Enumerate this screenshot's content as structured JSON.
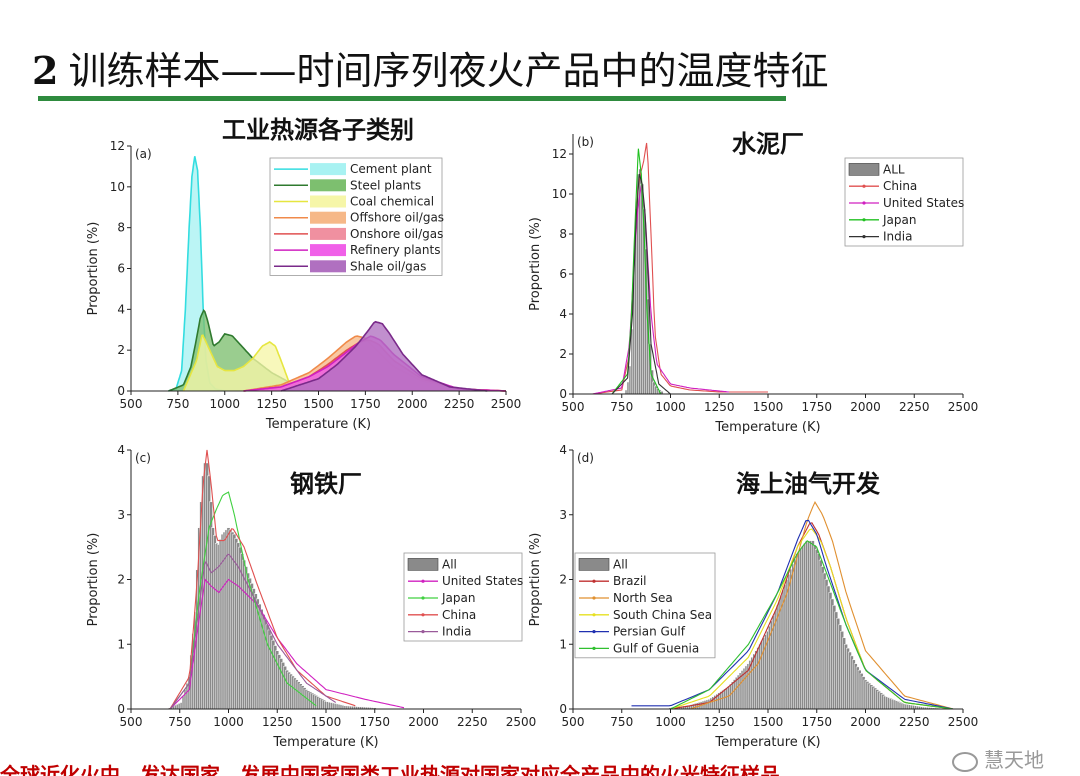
{
  "slide": {
    "number": "2",
    "title": "训练样本——时间序列夜火产品中的温度特征",
    "bottom_note": "全球近化火中，发达国家，发展中国家国类工业热源对国家对应全产品中的火光特征样品",
    "watermark": "慧天地"
  },
  "chart_data": [
    {
      "id": "a",
      "type": "area",
      "panel_label": "(a)",
      "title": "工业热源各子类别",
      "xlabel": "Temperature (K)",
      "ylabel": "Proportion (%)",
      "xlim": [
        500,
        2500
      ],
      "ylim": [
        0,
        12
      ],
      "xticks": [
        500,
        750,
        1000,
        1250,
        1500,
        1750,
        2000,
        2250,
        2500
      ],
      "yticks": [
        0,
        2,
        4,
        6,
        8,
        10,
        12
      ],
      "legend_position": "top-right",
      "series": [
        {
          "name": "Cement plant",
          "color": "#33dde0",
          "fill": "#a8f2f2",
          "x": [
            700,
            740,
            770,
            790,
            810,
            825,
            840,
            855,
            870,
            885,
            900,
            920,
            950,
            1000
          ],
          "y": [
            0,
            0.1,
            1.0,
            4.0,
            8.0,
            10.5,
            11.5,
            10.8,
            8.0,
            4.0,
            1.5,
            0.4,
            0.1,
            0
          ]
        },
        {
          "name": "Steel plants",
          "color": "#2f7a2f",
          "fill": "#7dbf6f",
          "x": [
            700,
            780,
            820,
            850,
            870,
            890,
            910,
            940,
            970,
            1000,
            1040,
            1080,
            1150,
            1250,
            1350,
            1450
          ],
          "y": [
            0,
            0.3,
            1.2,
            2.6,
            3.6,
            4.0,
            3.4,
            2.2,
            2.4,
            2.8,
            2.7,
            2.3,
            1.6,
            0.9,
            0.4,
            0.1
          ]
        },
        {
          "name": "Coal chemical",
          "color": "#e6e640",
          "fill": "#f6f6a8",
          "x": [
            780,
            850,
            880,
            920,
            960,
            1000,
            1050,
            1100,
            1150,
            1200,
            1240,
            1270,
            1300,
            1340,
            1400
          ],
          "y": [
            0,
            1.5,
            2.8,
            2.0,
            1.2,
            1.0,
            1.0,
            1.2,
            1.6,
            2.2,
            2.4,
            2.2,
            1.5,
            0.5,
            0.1
          ]
        },
        {
          "name": "Offshore oil/gas",
          "color": "#f08a4a",
          "fill": "#f6b888",
          "x": [
            1100,
            1300,
            1450,
            1550,
            1650,
            1700,
            1750,
            1800,
            1900,
            2050,
            2250,
            2500
          ],
          "y": [
            0,
            0.3,
            0.9,
            1.6,
            2.4,
            2.7,
            2.6,
            2.1,
            1.2,
            0.5,
            0.1,
            0
          ]
        },
        {
          "name": "Onshore oil/gas",
          "color": "#e05050",
          "fill": "#f090a0",
          "x": [
            1100,
            1300,
            1450,
            1550,
            1650,
            1720,
            1770,
            1820,
            1900,
            2050,
            2250,
            2500
          ],
          "y": [
            0,
            0.2,
            0.7,
            1.3,
            2.0,
            2.4,
            2.5,
            2.3,
            1.5,
            0.6,
            0.1,
            0
          ]
        },
        {
          "name": "Refinery plants",
          "color": "#d020c0",
          "fill": "#f060e8",
          "x": [
            1100,
            1300,
            1450,
            1550,
            1650,
            1720,
            1780,
            1830,
            1900,
            2050,
            2250,
            2500
          ],
          "y": [
            0,
            0.2,
            0.7,
            1.2,
            1.9,
            2.4,
            2.7,
            2.5,
            1.8,
            0.7,
            0.1,
            0
          ]
        },
        {
          "name": "Shale oil/gas",
          "color": "#7a2a8a",
          "fill": "#b070c0",
          "x": [
            1300,
            1500,
            1600,
            1700,
            1760,
            1800,
            1840,
            1880,
            1950,
            2050,
            2200,
            2400
          ],
          "y": [
            0,
            0.6,
            1.3,
            2.2,
            2.9,
            3.4,
            3.3,
            2.8,
            1.8,
            0.8,
            0.2,
            0
          ]
        }
      ]
    },
    {
      "id": "b",
      "type": "bar",
      "panel_label": "(b)",
      "title": "水泥厂",
      "xlabel": "Temperature (K)",
      "ylabel": "Proportion (%)",
      "xlim": [
        500,
        2500
      ],
      "ylim": [
        0,
        13
      ],
      "xticks": [
        500,
        750,
        1000,
        1250,
        1500,
        1750,
        2000,
        2250,
        2500
      ],
      "yticks": [
        0,
        2,
        4,
        6,
        8,
        10,
        12
      ],
      "legend_position": "top-right",
      "histogram": {
        "name": "ALL",
        "x": [
          775,
          790,
          800,
          810,
          820,
          830,
          840,
          850,
          860,
          870,
          880,
          890,
          900,
          915,
          930,
          960
        ],
        "y": [
          0.2,
          0.8,
          2.0,
          4.5,
          8.0,
          10.5,
          11.5,
          11.0,
          10.0,
          8.5,
          6.0,
          3.5,
          1.5,
          0.6,
          0.3,
          0.1
        ]
      },
      "series": [
        {
          "name": "China",
          "color": "#e05050",
          "x": [
            600,
            750,
            790,
            810,
            830,
            845,
            860,
            880,
            900,
            920,
            950,
            1000,
            1100,
            1250,
            1500
          ],
          "y": [
            0,
            0.2,
            2.0,
            6.0,
            10.0,
            11.0,
            11.5,
            12.7,
            8.0,
            3.0,
            1.0,
            0.4,
            0.2,
            0.1,
            0.1
          ]
        },
        {
          "name": "United States",
          "color": "#d020c0",
          "x": [
            600,
            750,
            790,
            810,
            830,
            850,
            870,
            900,
            930,
            1000,
            1100,
            1300
          ],
          "y": [
            0,
            0.3,
            2.5,
            6.0,
            9.0,
            10.5,
            9.0,
            4.0,
            1.5,
            0.5,
            0.3,
            0.1
          ]
        },
        {
          "name": "Japan",
          "color": "#20c020",
          "x": [
            700,
            780,
            800,
            820,
            835,
            850,
            865,
            880,
            900,
            950
          ],
          "y": [
            0,
            1.0,
            4.0,
            9.0,
            12.3,
            11.0,
            8.0,
            4.0,
            1.0,
            0
          ]
        },
        {
          "name": "India",
          "color": "#333333",
          "x": [
            700,
            780,
            805,
            825,
            840,
            855,
            870,
            885,
            900,
            940,
            1000
          ],
          "y": [
            0,
            0.8,
            4.0,
            9.0,
            11.0,
            10.5,
            9.0,
            6.0,
            2.5,
            0.5,
            0
          ]
        }
      ]
    },
    {
      "id": "c",
      "type": "bar",
      "panel_label": "(c)",
      "title": "钢铁厂",
      "xlabel": "Temperature (K)",
      "ylabel": "Proportion (%)",
      "xlim": [
        500,
        2500
      ],
      "ylim": [
        0,
        4
      ],
      "xticks": [
        500,
        750,
        1000,
        1250,
        1500,
        1750,
        2000,
        2250,
        2500
      ],
      "yticks": [
        0,
        1,
        2,
        3,
        4
      ],
      "legend_position": "center-right",
      "histogram": {
        "name": "All",
        "x": [
          700,
          760,
          800,
          830,
          850,
          870,
          885,
          900,
          920,
          945,
          970,
          1000,
          1030,
          1060,
          1100,
          1150,
          1200,
          1250,
          1300,
          1400,
          1500,
          1600,
          1750
        ],
        "y": [
          0.02,
          0.1,
          0.5,
          1.5,
          2.8,
          3.6,
          3.9,
          3.6,
          2.8,
          2.5,
          2.7,
          2.8,
          2.7,
          2.5,
          2.1,
          1.7,
          1.3,
          0.9,
          0.6,
          0.3,
          0.12,
          0.05,
          0.02
        ]
      },
      "series": [
        {
          "name": "United States",
          "color": "#d020c0",
          "x": [
            700,
            800,
            850,
            880,
            910,
            950,
            1000,
            1050,
            1150,
            1250,
            1350,
            1500,
            1700,
            1900
          ],
          "y": [
            0,
            0.3,
            1.4,
            2.0,
            1.9,
            1.8,
            2.0,
            1.9,
            1.6,
            1.1,
            0.7,
            0.3,
            0.15,
            0.02
          ]
        },
        {
          "name": "Japan",
          "color": "#40d040",
          "x": [
            700,
            800,
            850,
            900,
            940,
            970,
            1000,
            1030,
            1100,
            1200,
            1300,
            1450
          ],
          "y": [
            0,
            0.4,
            1.8,
            2.8,
            3.1,
            3.3,
            3.35,
            3.0,
            2.0,
            1.0,
            0.4,
            0.05
          ]
        },
        {
          "name": "China",
          "color": "#e05050",
          "x": [
            700,
            800,
            840,
            870,
            890,
            910,
            940,
            980,
            1020,
            1080,
            1150,
            1250,
            1350,
            1500,
            1650
          ],
          "y": [
            0,
            0.5,
            2.0,
            3.5,
            4.0,
            3.5,
            2.6,
            2.6,
            2.8,
            2.5,
            1.9,
            1.1,
            0.6,
            0.2,
            0.05
          ]
        },
        {
          "name": "India",
          "color": "#9a5a9a",
          "x": [
            700,
            800,
            850,
            880,
            910,
            950,
            1000,
            1050,
            1150,
            1250,
            1400,
            1550
          ],
          "y": [
            0,
            0.4,
            1.6,
            2.3,
            2.1,
            2.2,
            2.4,
            2.2,
            1.6,
            1.0,
            0.4,
            0.1
          ]
        }
      ]
    },
    {
      "id": "d",
      "type": "bar",
      "panel_label": "(d)",
      "title": "海上油气开发",
      "xlabel": "Temperature (K)",
      "ylabel": "Proportion (%)",
      "xlim": [
        500,
        2500
      ],
      "ylim": [
        0,
        4
      ],
      "xticks": [
        500,
        750,
        1000,
        1250,
        1500,
        1750,
        2000,
        2250,
        2500
      ],
      "yticks": [
        0,
        1,
        2,
        3,
        4
      ],
      "legend_position": "center-left",
      "histogram": {
        "name": "All",
        "x": [
          1000,
          1100,
          1200,
          1300,
          1400,
          1500,
          1550,
          1600,
          1650,
          1700,
          1730,
          1760,
          1800,
          1850,
          1900,
          1950,
          2000,
          2100,
          2200,
          2300,
          2400
        ],
        "y": [
          0.02,
          0.06,
          0.15,
          0.35,
          0.7,
          1.2,
          1.6,
          2.0,
          2.4,
          2.6,
          2.6,
          2.4,
          2.0,
          1.5,
          1.0,
          0.7,
          0.45,
          0.2,
          0.08,
          0.03,
          0.01
        ]
      },
      "series": [
        {
          "name": "Brazil",
          "color": "#c03030",
          "x": [
            1000,
            1200,
            1400,
            1550,
            1650,
            1720,
            1760,
            1820,
            1900,
            2000,
            2200,
            2450
          ],
          "y": [
            0,
            0.1,
            0.6,
            1.6,
            2.5,
            2.9,
            2.7,
            2.2,
            1.4,
            0.6,
            0.1,
            0
          ]
        },
        {
          "name": "North Sea",
          "color": "#e09030",
          "x": [
            1100,
            1300,
            1450,
            1600,
            1700,
            1740,
            1780,
            1830,
            1900,
            2000,
            2200,
            2450
          ],
          "y": [
            0,
            0.2,
            0.7,
            1.8,
            2.9,
            3.2,
            3.0,
            2.6,
            1.8,
            0.9,
            0.2,
            0
          ]
        },
        {
          "name": "South China Sea",
          "color": "#e6e020",
          "x": [
            1000,
            1200,
            1400,
            1550,
            1650,
            1720,
            1770,
            1820,
            1900,
            2000,
            2200,
            2450
          ],
          "y": [
            0,
            0.2,
            0.8,
            1.7,
            2.5,
            2.8,
            2.6,
            2.2,
            1.4,
            0.6,
            0.1,
            0
          ]
        },
        {
          "name": "Persian Gulf",
          "color": "#2030b0",
          "x": [
            800,
            1000,
            1200,
            1400,
            1550,
            1650,
            1700,
            1750,
            1800,
            1900,
            2000,
            2200,
            2450
          ],
          "y": [
            0.05,
            0.05,
            0.3,
            0.9,
            1.8,
            2.6,
            2.95,
            2.7,
            2.2,
            1.3,
            0.6,
            0.15,
            0
          ]
        },
        {
          "name": "Gulf of Guenia",
          "color": "#30c030",
          "x": [
            1000,
            1200,
            1400,
            1550,
            1650,
            1700,
            1750,
            1800,
            1900,
            2000,
            2200,
            2450
          ],
          "y": [
            0,
            0.3,
            1.0,
            1.8,
            2.4,
            2.6,
            2.5,
            2.1,
            1.3,
            0.6,
            0.1,
            0
          ]
        }
      ]
    }
  ]
}
